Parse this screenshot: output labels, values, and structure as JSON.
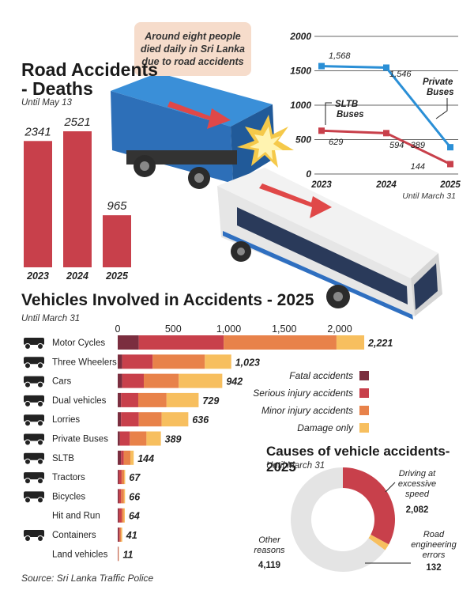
{
  "callout_text": "Around eight people died daily in Sri Lanka due to road accidents",
  "source": "Source: Sri Lanka Traffic Police",
  "colors": {
    "fatal": "#7b2e3f",
    "serious": "#c8404b",
    "minor": "#e8824a",
    "damage": "#f7bf5f",
    "sltb_line": "#c8404b",
    "private_line": "#2a8fd6",
    "donut_other": "#e4e4e4"
  },
  "chart_data": [
    {
      "id": "deaths",
      "type": "bar",
      "title": "Road Accidents - Deaths",
      "title_line1": "Road Accidents",
      "title_line2": "- Deaths",
      "subtitle": "Until May 13",
      "categories": [
        "2023",
        "2024",
        "2025"
      ],
      "values": [
        2341,
        2521,
        965
      ],
      "value_labels": [
        "2341",
        "2521",
        "965"
      ],
      "color": "#c8404b"
    },
    {
      "id": "bus_line",
      "type": "line",
      "x": [
        "2023",
        "2024",
        "2025"
      ],
      "x_note": "Until March 31",
      "yticks": [
        "2000",
        "1500",
        "1000",
        "500",
        "0"
      ],
      "ylim": [
        0,
        2000
      ],
      "series": [
        {
          "name": "Private Buses",
          "name_line1": "Private",
          "name_line2": "Buses",
          "values": [
            1568,
            1546,
            389
          ],
          "labels": [
            "1,568",
            "1,546",
            "389"
          ]
        },
        {
          "name": "SLTB Buses",
          "name_line1": "SLTB",
          "name_line2": "Buses",
          "values": [
            629,
            594,
            144
          ],
          "labels": [
            "629",
            "594",
            "144"
          ]
        }
      ]
    },
    {
      "id": "vehicles",
      "type": "bar",
      "orientation": "horizontal",
      "stacked": true,
      "title": "Vehicles Involved in Accidents - 2025",
      "subtitle": "Until March 31",
      "xticks": [
        "0",
        "500",
        "1,000",
        "1,500",
        "2,000"
      ],
      "xtick_values": [
        0,
        500,
        1000,
        1500,
        2000
      ],
      "categories": [
        "Motor Cycles",
        "Three Wheelers",
        "Cars",
        "Dual vehicles",
        "Lorries",
        "Private Buses",
        "SLTB",
        "Tractors",
        "Bicycles",
        "Hit and Run",
        "Containers",
        "Land vehicles"
      ],
      "icons": [
        "motorcycle-icon",
        "three-wheeler-icon",
        "car-icon",
        "dual-vehicle-icon",
        "lorry-icon",
        "private-bus-icon",
        "sltb-bus-icon",
        "tractor-icon",
        "bicycle-icon",
        "",
        "container-icon",
        ""
      ],
      "totals": [
        2221,
        1023,
        942,
        729,
        636,
        389,
        144,
        67,
        66,
        64,
        41,
        11
      ],
      "total_labels": [
        "2,221",
        "1,023",
        "942",
        "729",
        "636",
        "389",
        "144",
        "67",
        "66",
        "64",
        "41",
        "11"
      ],
      "series": [
        {
          "name": "Fatal accidents",
          "values": [
            190,
            40,
            40,
            30,
            30,
            20,
            30,
            10,
            10,
            10,
            10,
            3
          ]
        },
        {
          "name": "Serious injury accidents",
          "values": [
            765,
            275,
            195,
            155,
            160,
            89,
            24,
            25,
            21,
            26,
            9,
            3
          ]
        },
        {
          "name": "Minor injury accidents",
          "values": [
            1016,
            470,
            315,
            255,
            206,
            150,
            60,
            22,
            25,
            18,
            12,
            3
          ]
        },
        {
          "name": "Damage only",
          "values": [
            250,
            238,
            392,
            289,
            240,
            130,
            30,
            10,
            10,
            10,
            10,
            2
          ]
        }
      ]
    },
    {
      "id": "causes",
      "type": "pie",
      "donut": true,
      "title": "Causes of vehicle accidents- 2025",
      "subtitle": "Until March 31",
      "slices": [
        {
          "name": "Driving at excessive speed",
          "name_lines": [
            "Driving at",
            "excessive",
            "speed"
          ],
          "value": 2082,
          "label": "2,082"
        },
        {
          "name": "Road engineering errors",
          "name_lines": [
            "Road",
            "engineering",
            "errors"
          ],
          "value": 132,
          "label": "132"
        },
        {
          "name": "Other reasons",
          "name_lines": [
            "Other",
            "reasons"
          ],
          "value": 4119,
          "label": "4,119"
        }
      ]
    }
  ]
}
